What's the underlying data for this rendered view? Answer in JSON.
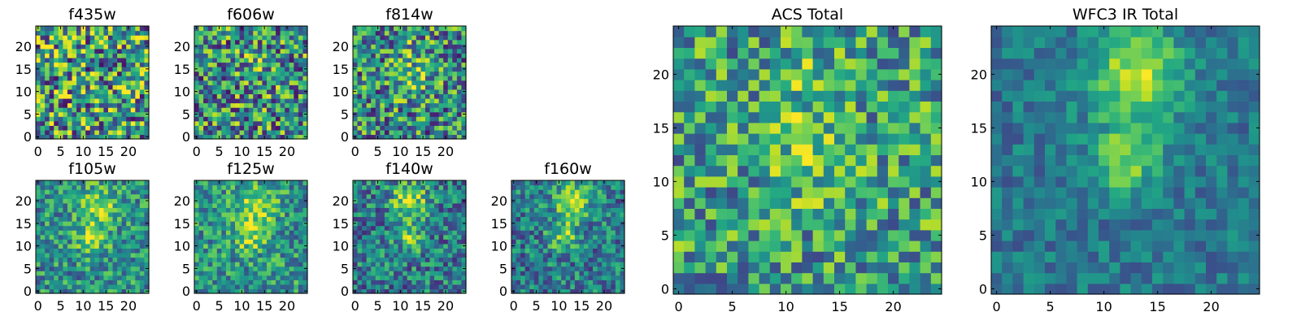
{
  "chart_data": [
    {
      "type": "heatmap",
      "title": "f435w",
      "xticks": [
        "0",
        "5",
        "10",
        "15",
        "20"
      ],
      "yticks": [
        "0",
        "5",
        "10",
        "15",
        "20"
      ],
      "xlim": [
        -0.5,
        24.5
      ],
      "ylim": [
        -0.5,
        24.5
      ],
      "grid_size": 25,
      "colormap": "viridis",
      "pattern": "noise",
      "sources": [],
      "noise": 0.5,
      "base": 0.55,
      "seed": 11
    },
    {
      "type": "heatmap",
      "title": "f606w",
      "xticks": [
        "0",
        "5",
        "10",
        "15",
        "20"
      ],
      "yticks": [
        "0",
        "5",
        "10",
        "15",
        "20"
      ],
      "xlim": [
        -0.5,
        24.5
      ],
      "ylim": [
        -0.5,
        24.5
      ],
      "grid_size": 25,
      "colormap": "viridis",
      "pattern": "noise with faint central source",
      "sources": [
        {
          "x": 13,
          "y": 16,
          "amp": 0.12,
          "sigma": 3
        }
      ],
      "noise": 0.45,
      "base": 0.5,
      "seed": 23
    },
    {
      "type": "heatmap",
      "title": "f814w",
      "xticks": [
        "0",
        "5",
        "10",
        "15",
        "20"
      ],
      "yticks": [
        "0",
        "5",
        "10",
        "15",
        "20"
      ],
      "xlim": [
        -0.5,
        24.5
      ],
      "ylim": [
        -0.5,
        24.5
      ],
      "grid_size": 25,
      "colormap": "viridis",
      "pattern": "noise with central source",
      "sources": [
        {
          "x": 13,
          "y": 12,
          "amp": 0.22,
          "sigma": 3
        },
        {
          "x": 12,
          "y": 19,
          "amp": 0.15,
          "sigma": 3
        }
      ],
      "noise": 0.42,
      "base": 0.48,
      "seed": 37
    },
    {
      "type": "heatmap",
      "title": "f105w",
      "xticks": [
        "0",
        "5",
        "10",
        "15",
        "20"
      ],
      "yticks": [
        "0",
        "5",
        "10",
        "15",
        "20"
      ],
      "xlim": [
        -0.5,
        24.5
      ],
      "ylim": [
        -0.5,
        24.5
      ],
      "grid_size": 25,
      "colormap": "viridis",
      "pattern": "central source",
      "sources": [
        {
          "x": 13,
          "y": 19,
          "amp": 0.35,
          "sigma": 3
        },
        {
          "x": 12,
          "y": 12,
          "amp": 0.35,
          "sigma": 2.5
        }
      ],
      "noise": 0.28,
      "base": 0.5,
      "seed": 41
    },
    {
      "type": "heatmap",
      "title": "f125w",
      "xticks": [
        "0",
        "5",
        "10",
        "15",
        "20"
      ],
      "yticks": [
        "0",
        "5",
        "10",
        "15",
        "20"
      ],
      "xlim": [
        -0.5,
        24.5
      ],
      "ylim": [
        -0.5,
        24.5
      ],
      "grid_size": 25,
      "colormap": "viridis",
      "pattern": "central source",
      "sources": [
        {
          "x": 13,
          "y": 19,
          "amp": 0.38,
          "sigma": 3
        },
        {
          "x": 12,
          "y": 12,
          "amp": 0.3,
          "sigma": 2.5
        }
      ],
      "noise": 0.28,
      "base": 0.52,
      "seed": 53
    },
    {
      "type": "heatmap",
      "title": "f140w",
      "xticks": [
        "0",
        "5",
        "10",
        "15",
        "20"
      ],
      "yticks": [
        "0",
        "5",
        "10",
        "15",
        "20"
      ],
      "xlim": [
        -0.5,
        24.5
      ],
      "ylim": [
        -0.5,
        24.5
      ],
      "grid_size": 25,
      "colormap": "viridis",
      "pattern": "central source",
      "sources": [
        {
          "x": 12,
          "y": 20,
          "amp": 0.45,
          "sigma": 2.8
        },
        {
          "x": 12,
          "y": 12,
          "amp": 0.32,
          "sigma": 2.2
        }
      ],
      "noise": 0.3,
      "base": 0.42,
      "seed": 67
    },
    {
      "type": "heatmap",
      "title": "f160w",
      "xticks": [
        "0",
        "5",
        "10",
        "15",
        "20"
      ],
      "yticks": [
        "0",
        "5",
        "10",
        "15",
        "20"
      ],
      "xlim": [
        -0.5,
        24.5
      ],
      "ylim": [
        -0.5,
        24.5
      ],
      "grid_size": 25,
      "colormap": "viridis",
      "pattern": "central source",
      "sources": [
        {
          "x": 13,
          "y": 20,
          "amp": 0.45,
          "sigma": 3
        },
        {
          "x": 11,
          "y": 12,
          "amp": 0.35,
          "sigma": 2.2
        }
      ],
      "noise": 0.28,
      "base": 0.42,
      "seed": 79
    },
    {
      "type": "heatmap",
      "title": "ACS Total",
      "xticks": [
        "0",
        "5",
        "10",
        "15",
        "20"
      ],
      "yticks": [
        "0",
        "5",
        "10",
        "15",
        "20"
      ],
      "xlim": [
        -0.5,
        24.5
      ],
      "ylim": [
        -0.5,
        24.5
      ],
      "grid_size": 25,
      "colormap": "viridis",
      "pattern": "noise with central source",
      "sources": [
        {
          "x": 12,
          "y": 12,
          "amp": 0.22,
          "sigma": 2.5
        },
        {
          "x": 12,
          "y": 19,
          "amp": 0.15,
          "sigma": 3
        }
      ],
      "noise": 0.34,
      "base": 0.55,
      "seed": 97
    },
    {
      "type": "heatmap",
      "title": "WFC3 IR Total",
      "xticks": [
        "0",
        "5",
        "10",
        "15",
        "20"
      ],
      "yticks": [
        "0",
        "5",
        "10",
        "15",
        "20"
      ],
      "xlim": [
        -0.5,
        24.5
      ],
      "ylim": [
        -0.5,
        24.5
      ],
      "grid_size": 25,
      "colormap": "viridis",
      "pattern": "central source",
      "sources": [
        {
          "x": 13,
          "y": 20,
          "amp": 0.5,
          "sigma": 3
        },
        {
          "x": 12,
          "y": 12,
          "amp": 0.4,
          "sigma": 2.2
        }
      ],
      "noise": 0.16,
      "base": 0.4,
      "seed": 113
    }
  ]
}
